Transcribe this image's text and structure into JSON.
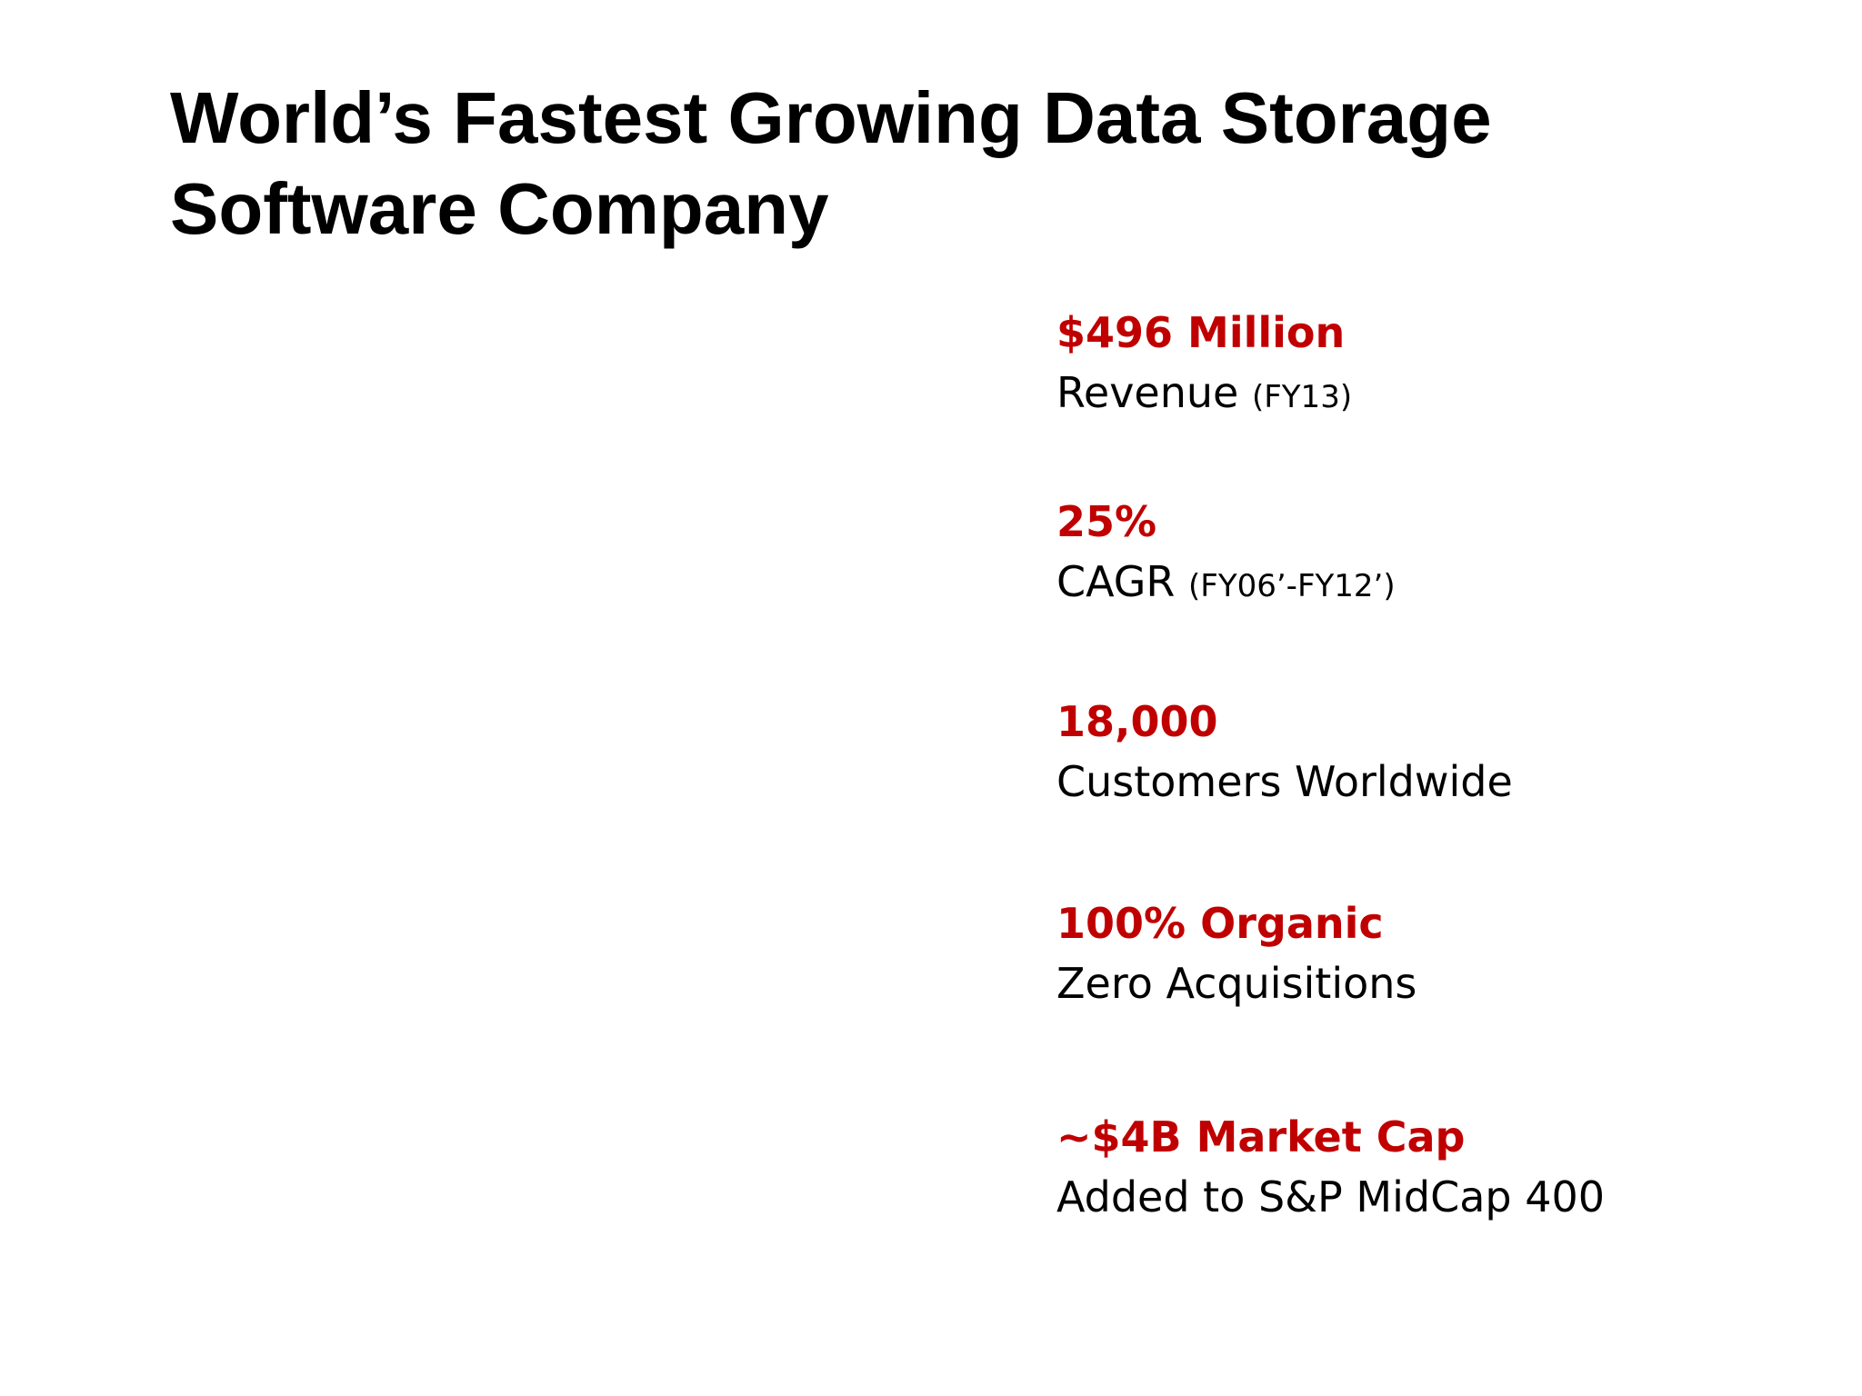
{
  "slide": {
    "title_line1": "World’s Fastest Growing Data Storage",
    "title_line2": "Software Company",
    "accent_color": "#c00000",
    "stats": [
      {
        "value": "$496 Million",
        "caption": "Revenue",
        "note": "(FY13)"
      },
      {
        "value": "25%",
        "caption": "CAGR",
        "note": "(FY06’-FY12’)"
      },
      {
        "value": "18,000",
        "caption": "Customers Worldwide"
      },
      {
        "value": "100% Organic",
        "caption": "Zero Acquisitions"
      },
      {
        "value": "~$4B Market Cap",
        "caption": "Added to S&P MidCap 400"
      }
    ]
  }
}
